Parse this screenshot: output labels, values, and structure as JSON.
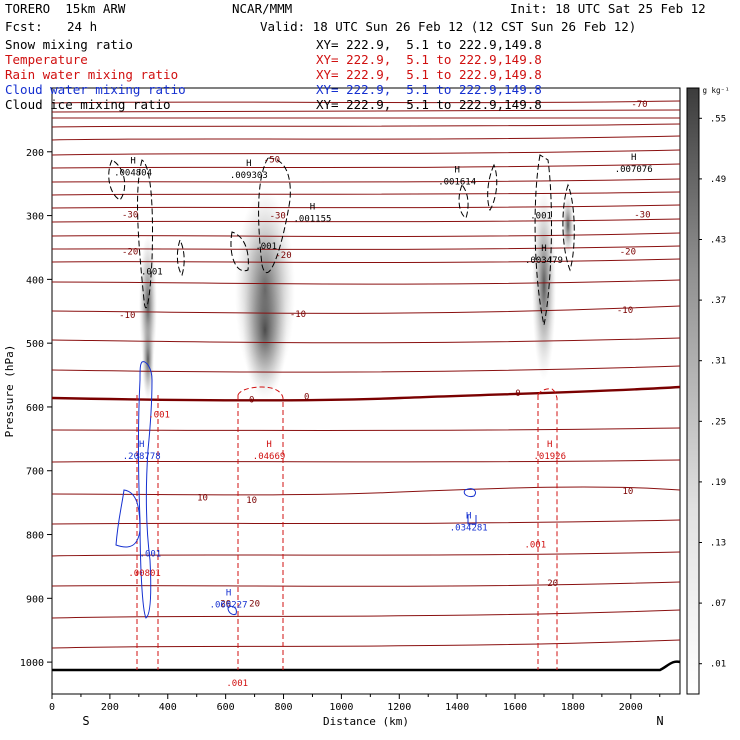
{
  "header": {
    "model": "TORERO  15km ARW",
    "org": "NCAR/MMM",
    "init": "Init: 18 UTC Sat 25 Feb 12",
    "fcst_label": "Fcst:",
    "fcst_value": "24 h",
    "valid": "Valid: 18 UTC Sun 26 Feb 12 (12 CST Sun 26 Feb 12)"
  },
  "fields": [
    {
      "name": "Snow mixing ratio",
      "xy": "XY= 222.9,  5.1 to 222.9,149.8",
      "color": "#000000"
    },
    {
      "name": "Temperature",
      "xy": "XY= 222.9,  5.1 to 222.9,149.8",
      "color": "#d01010"
    },
    {
      "name": "Rain water mixing ratio",
      "xy": "XY= 222.9,  5.1 to 222.9,149.8",
      "color": "#d01010"
    },
    {
      "name": "Cloud water mixing ratio",
      "xy": "XY= 222.9,  5.1 to 222.9,149.8",
      "color": "#1530d0"
    },
    {
      "name": "Cloud ice mixing ratio",
      "xy": "XY= 222.9,  5.1 to 222.9,149.8",
      "color": "#000000"
    }
  ],
  "chart_data": {
    "type": "cross-section",
    "xlabel": "Distance (km)",
    "ylabel": "Pressure (hPa)",
    "xlim": [
      0,
      2170
    ],
    "ylim": [
      1050,
      100
    ],
    "x_ticks": [
      0,
      200,
      400,
      600,
      800,
      1000,
      1200,
      1400,
      1600,
      1800,
      2000
    ],
    "y_ticks": [
      200,
      300,
      400,
      500,
      600,
      700,
      800,
      900,
      1000
    ],
    "side_left": "S",
    "side_right": "N",
    "colorbar": {
      "unit": "g kg⁻¹",
      "labels": [
        ".01",
        ".07",
        ".13",
        ".19",
        ".25",
        ".31",
        ".37",
        ".43",
        ".49",
        ".55"
      ]
    },
    "temperature_contours": [
      {
        "value": -70,
        "label": "-70",
        "label_x": 2030,
        "p": 125
      },
      {
        "value": -50,
        "label": "-50",
        "label_x": 760,
        "p": 212
      },
      {
        "value": -30,
        "label": "-30",
        "label_x": 270,
        "p": 298
      },
      {
        "value": -30,
        "label": "-30",
        "label_x": 780,
        "p": 300
      },
      {
        "value": -30,
        "label": "-30",
        "label_x": 2040,
        "p": 298
      },
      {
        "value": -20,
        "label": "-20",
        "label_x": 270,
        "p": 356
      },
      {
        "value": -20,
        "label": "-20",
        "label_x": 800,
        "p": 362
      },
      {
        "value": -20,
        "label": "-20",
        "label_x": 1990,
        "p": 356
      },
      {
        "value": -10,
        "label": "-10",
        "label_x": 260,
        "p": 456
      },
      {
        "value": -10,
        "label": "-10",
        "label_x": 850,
        "p": 454
      },
      {
        "value": -10,
        "label": "-10",
        "label_x": 1980,
        "p": 448
      },
      {
        "value": 0,
        "label": "0",
        "label_x": 690,
        "p": 588
      },
      {
        "value": 0,
        "label": "0",
        "label_x": 880,
        "p": 584
      },
      {
        "value": 0,
        "label": "0",
        "label_x": 1610,
        "p": 578
      },
      {
        "value": 10,
        "label": "10",
        "label_x": 520,
        "p": 742
      },
      {
        "value": 10,
        "label": "10",
        "label_x": 690,
        "p": 746
      },
      {
        "value": 10,
        "label": "10",
        "label_x": 1990,
        "p": 732
      },
      {
        "value": 20,
        "label": "20",
        "label_x": 1730,
        "p": 876
      },
      {
        "value": 20,
        "label": "20",
        "label_x": 600,
        "p": 908
      },
      {
        "value": 20,
        "label": "20",
        "label_x": 700,
        "p": 908
      }
    ],
    "extrema": [
      {
        "type": "H",
        "value": ".004804",
        "x": 280,
        "p": 228,
        "field": "snow"
      },
      {
        "type": "H",
        "value": ".009303",
        "x": 680,
        "p": 232,
        "field": "snow"
      },
      {
        "type": "H",
        "value": ".001155",
        "x": 900,
        "p": 300,
        "field": "snow"
      },
      {
        "type": "H",
        "value": ".001614",
        "x": 1400,
        "p": 242,
        "field": "snow"
      },
      {
        "type": "H",
        "value": ".007076",
        "x": 2010,
        "p": 222,
        "field": "snow"
      },
      {
        "type": "H",
        "value": ".003479",
        "x": 1700,
        "p": 365,
        "field": "snow"
      },
      {
        "type": "H",
        "value": ".208778",
        "x": 310,
        "p": 672,
        "field": "cloud_water"
      },
      {
        "type": "H",
        "value": ".04669",
        "x": 750,
        "p": 672,
        "field": "rain"
      },
      {
        "type": "H",
        "value": ".01926",
        "x": 1720,
        "p": 672,
        "field": "rain"
      },
      {
        "type": "H",
        "value": ".034281",
        "x": 1440,
        "p": 784,
        "field": "cloud_water"
      },
      {
        "type": "H",
        "value": ".068227",
        "x": 610,
        "p": 905,
        "field": "cloud_water"
      }
    ],
    "small_labels": [
      {
        "value": ".001",
        "x": 345,
        "p": 388,
        "field": "snow"
      },
      {
        "value": ".001",
        "x": 740,
        "p": 348,
        "field": "snow"
      },
      {
        "value": ".001",
        "x": 1690,
        "p": 300,
        "field": "snow"
      },
      {
        "value": ".001",
        "x": 370,
        "p": 612,
        "field": "rain"
      },
      {
        "value": ".001",
        "x": 340,
        "p": 830,
        "field": "cloud_water"
      },
      {
        "value": ".00801",
        "x": 320,
        "p": 860,
        "field": "rain"
      },
      {
        "value": ".001",
        "x": 1670,
        "p": 816,
        "field": "rain"
      },
      {
        "value": ".001",
        "x": 640,
        "p": 1033,
        "field": "rain"
      }
    ]
  }
}
